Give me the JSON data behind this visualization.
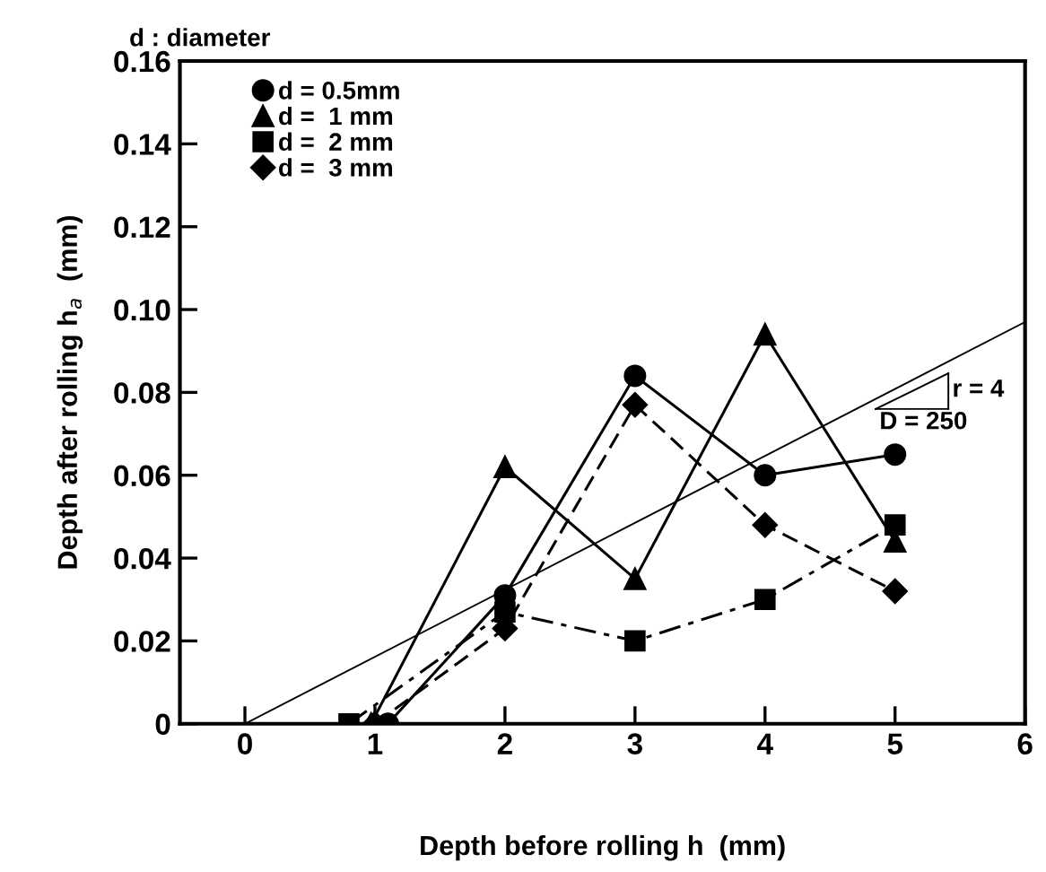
{
  "chart_data": {
    "type": "line",
    "title": "d : diameter",
    "xlabel": "Depth before rolling h  (mm)",
    "ylabel": "Depth after rolling h$_{a}$  (mm)",
    "xlim": [
      -0.5,
      6
    ],
    "xticks": [
      0,
      1,
      2,
      3,
      4,
      5,
      6
    ],
    "ylim": [
      0,
      0.16
    ],
    "yticks": [
      0,
      0.02,
      0.04,
      0.06,
      0.08,
      {
        "value": 0.1,
        "label": "0.10"
      },
      0.12,
      0.14,
      0.16
    ],
    "grid": false,
    "legend": "top left",
    "annotations": [
      "r = 4",
      "D = 250"
    ],
    "series": [
      {
        "name": "d = 0.5mm",
        "color": "#000000",
        "marker": "circle",
        "line_style": "solid",
        "x": [
          1.1,
          2,
          3,
          4,
          5
        ],
        "values": [
          0,
          0.031,
          0.084,
          0.06,
          0.065
        ]
      },
      {
        "name": "d =  1 mm",
        "color": "#000000",
        "marker": "triangle",
        "line_style": "solid",
        "x": [
          0.97,
          2,
          3,
          4,
          5
        ],
        "values": [
          0,
          0.062,
          0.035,
          0.094,
          0.044
        ]
      },
      {
        "name": "d =  2 mm",
        "color": "#000000",
        "marker": "square",
        "line_style": "dashdot",
        "x": [
          0.8,
          2,
          3,
          4,
          5
        ],
        "values": [
          0,
          0.027,
          0.02,
          0.03,
          0.048
        ]
      },
      {
        "name": "d =  3 mm",
        "color": "#000000",
        "marker": "diamond",
        "line_style": "dashed",
        "x": [
          1,
          2,
          3,
          4,
          5
        ],
        "values": [
          0,
          0.023,
          0.077,
          0.048,
          0.032
        ]
      },
      {
        "color": "#000000",
        "marker": "none",
        "line_style": "solid",
        "x": [
          0,
          6
        ],
        "values": [
          0,
          0.097
        ]
      }
    ]
  }
}
